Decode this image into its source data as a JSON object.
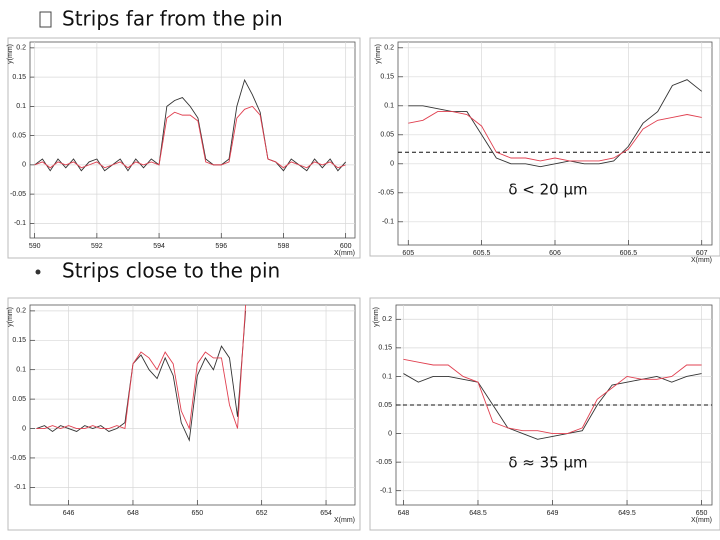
{
  "slide": {
    "heading1": "Strips far from the pin",
    "heading2": "Strips close to the pin"
  },
  "chart_data": [
    {
      "type": "line",
      "xlabel": "X(mm)",
      "ylabel": "y(mm)",
      "grid": true,
      "x": [
        590,
        590.25,
        590.5,
        590.75,
        591,
        591.25,
        591.5,
        591.75,
        592,
        592.25,
        592.5,
        592.75,
        593,
        593.25,
        593.5,
        593.75,
        594,
        594.25,
        594.5,
        594.75,
        595,
        595.25,
        595.5,
        595.75,
        596,
        596.25,
        596.5,
        596.75,
        597,
        597.25,
        597.5,
        597.75,
        598,
        598.25,
        598.5,
        598.75,
        599,
        599.25,
        599.5,
        599.75,
        600
      ],
      "series": [
        {
          "name": "black",
          "color": "#333333",
          "values": [
            0,
            0.01,
            -0.01,
            0.01,
            -0.005,
            0.01,
            -0.01,
            0.005,
            0.01,
            -0.01,
            0,
            0.01,
            -0.01,
            0.01,
            -0.005,
            0.01,
            0,
            0.1,
            0.11,
            0.115,
            0.1,
            0.08,
            0.01,
            0,
            0,
            0.01,
            0.1,
            0.145,
            0.12,
            0.09,
            0.01,
            0.005,
            -0.01,
            0.01,
            0,
            -0.01,
            0.01,
            -0.005,
            0.01,
            -0.01,
            0.005
          ]
        },
        {
          "name": "red",
          "color": "#e04050",
          "values": [
            0,
            0.005,
            -0.005,
            0.005,
            0,
            0.005,
            -0.005,
            0,
            0.005,
            -0.005,
            0,
            0.005,
            -0.005,
            0.005,
            0,
            0.005,
            0,
            0.08,
            0.09,
            0.085,
            0.085,
            0.075,
            0.005,
            0,
            0,
            0.005,
            0.08,
            0.095,
            0.1,
            0.085,
            0.01,
            0.005,
            -0.005,
            0.005,
            0,
            -0.005,
            0.005,
            0,
            0.005,
            -0.005,
            0
          ]
        }
      ],
      "xlim": [
        589.85,
        600.3
      ],
      "ylim": [
        -0.125,
        0.21
      ],
      "xticks": [
        590,
        592,
        594,
        596,
        598,
        600
      ],
      "yticks": [
        -0.1,
        -0.05,
        0,
        0.05,
        0.1,
        0.15,
        0.2
      ]
    },
    {
      "type": "line",
      "xlabel": "X(mm)",
      "ylabel": "y(mm)",
      "grid": true,
      "hline": 0.02,
      "annotation": "δ < 20 μm",
      "x": [
        605,
        605.1,
        605.2,
        605.3,
        605.4,
        605.5,
        605.6,
        605.7,
        605.8,
        605.9,
        606,
        606.1,
        606.2,
        606.3,
        606.4,
        606.5,
        606.6,
        606.7,
        606.8,
        606.9,
        607
      ],
      "series": [
        {
          "name": "black",
          "color": "#333333",
          "values": [
            0.1,
            0.1,
            0.095,
            0.09,
            0.09,
            0.05,
            0.01,
            0,
            0,
            -0.005,
            0,
            0.005,
            0,
            0,
            0.005,
            0.03,
            0.07,
            0.09,
            0.135,
            0.145,
            0.125
          ]
        },
        {
          "name": "red",
          "color": "#e04050",
          "values": [
            0.07,
            0.075,
            0.09,
            0.09,
            0.085,
            0.065,
            0.02,
            0.01,
            0.01,
            0.005,
            0.01,
            0.005,
            0.005,
            0.005,
            0.01,
            0.025,
            0.06,
            0.075,
            0.08,
            0.085,
            0.08
          ]
        }
      ],
      "xlim": [
        604.93,
        607.07
      ],
      "ylim": [
        -0.14,
        0.21
      ],
      "xticks": [
        605,
        605.5,
        606,
        606.5,
        607
      ],
      "yticks": [
        -0.1,
        -0.05,
        0,
        0.05,
        0.1,
        0.15,
        0.2
      ]
    },
    {
      "type": "line",
      "xlabel": "X(mm)",
      "ylabel": "y(mm)",
      "grid": true,
      "x": [
        645,
        645.25,
        645.5,
        645.75,
        646,
        646.25,
        646.5,
        646.75,
        647,
        647.25,
        647.5,
        647.75,
        648,
        648.25,
        648.5,
        648.75,
        649,
        649.25,
        649.5,
        649.75,
        650,
        650.25,
        650.5,
        650.75,
        651,
        651.25,
        651.5
      ],
      "series": [
        {
          "name": "black",
          "color": "#333333",
          "values": [
            0,
            0.005,
            -0.005,
            0.005,
            0,
            -0.005,
            0.005,
            0,
            0.005,
            -0.005,
            0,
            0.01,
            0.11,
            0.125,
            0.1,
            0.085,
            0.12,
            0.09,
            0.01,
            -0.02,
            0.09,
            0.12,
            0.1,
            0.14,
            0.12,
            0.02,
            0.2
          ]
        },
        {
          "name": "red",
          "color": "#e04050",
          "values": [
            0,
            0,
            0.005,
            0,
            0.005,
            0,
            0,
            0.005,
            0,
            0,
            0.005,
            0,
            0.11,
            0.13,
            0.12,
            0.1,
            0.13,
            0.11,
            0.03,
            0,
            0.11,
            0.13,
            0.12,
            0.12,
            0.04,
            0,
            0.21
          ]
        }
      ],
      "xlim": [
        644.8,
        654.9
      ],
      "ylim": [
        -0.13,
        0.21
      ],
      "xticks": [
        646,
        648,
        650,
        652,
        654
      ],
      "yticks": [
        -0.1,
        -0.05,
        0,
        0.05,
        0.1,
        0.15,
        0.2
      ]
    },
    {
      "type": "line",
      "xlabel": "X(mm)",
      "ylabel": "y(mm)",
      "grid": true,
      "hline": 0.05,
      "annotation": "δ ≈ 35 μm",
      "x": [
        648,
        648.1,
        648.2,
        648.3,
        648.4,
        648.5,
        648.6,
        648.7,
        648.8,
        648.9,
        649,
        649.1,
        649.2,
        649.3,
        649.4,
        649.5,
        649.6,
        649.7,
        649.8,
        649.9,
        650
      ],
      "series": [
        {
          "name": "black",
          "color": "#333333",
          "values": [
            0.105,
            0.09,
            0.1,
            0.1,
            0.095,
            0.09,
            0.05,
            0.01,
            0,
            -0.01,
            -0.005,
            0,
            0.005,
            0.05,
            0.085,
            0.09,
            0.095,
            0.1,
            0.09,
            0.1,
            0.105
          ]
        },
        {
          "name": "red",
          "color": "#e04050",
          "values": [
            0.13,
            0.125,
            0.12,
            0.12,
            0.1,
            0.09,
            0.02,
            0.01,
            0.005,
            0.005,
            0,
            0,
            0.01,
            0.06,
            0.08,
            0.1,
            0.095,
            0.095,
            0.1,
            0.12,
            0.12
          ]
        }
      ],
      "xlim": [
        647.95,
        650.07
      ],
      "ylim": [
        -0.125,
        0.225
      ],
      "xticks": [
        648,
        648.5,
        649,
        649.5,
        650
      ],
      "yticks": [
        -0.1,
        -0.05,
        0,
        0.05,
        0.1,
        0.15,
        0.2
      ]
    }
  ]
}
